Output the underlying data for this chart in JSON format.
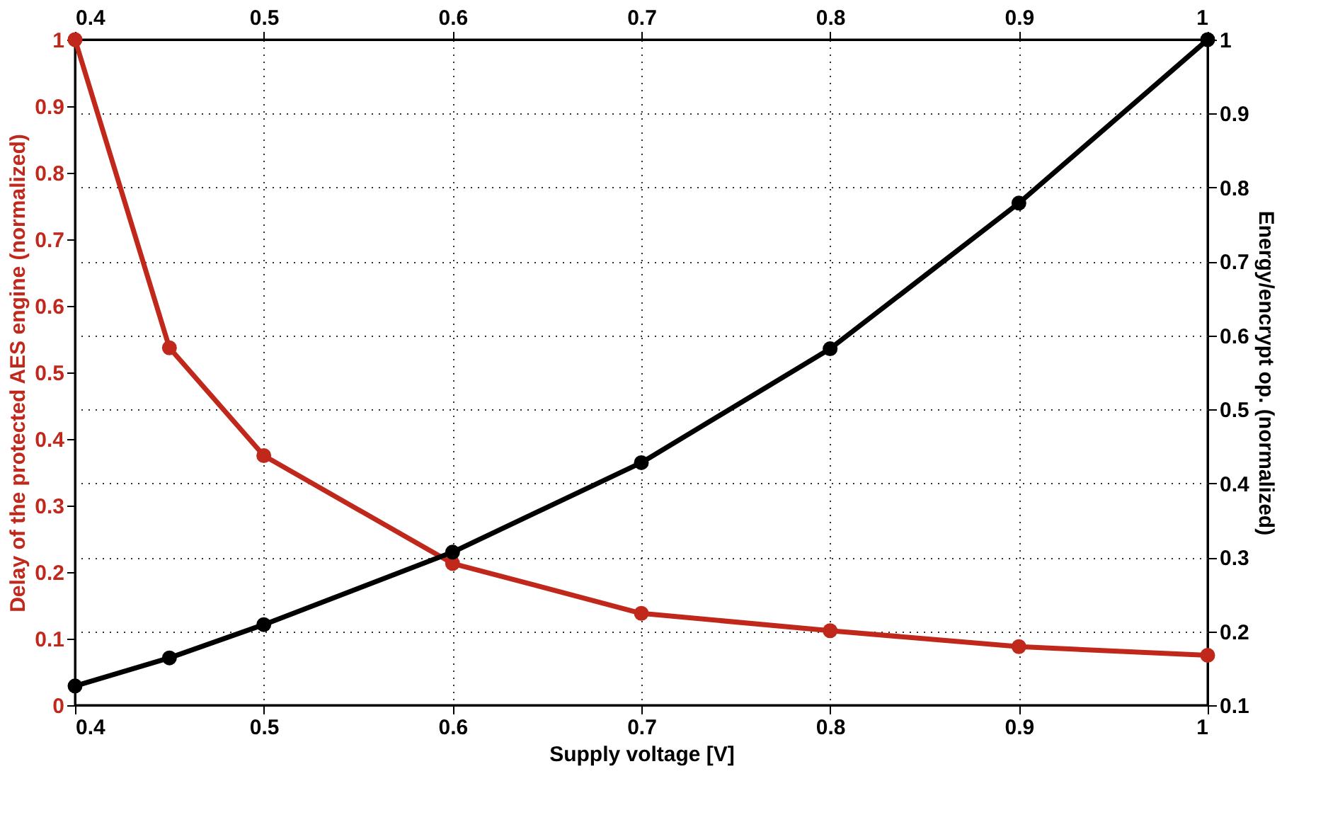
{
  "chart_data": {
    "type": "line",
    "xlabel": "Supply voltage [V]",
    "ylabel": "Delay of the protected AES engine (normalized)",
    "y2label": "Energy/encrypt op. (normalized)",
    "x": [
      0.4,
      0.45,
      0.5,
      0.6,
      0.7,
      0.8,
      0.9,
      1.0
    ],
    "series": [
      {
        "color": "#c0281c",
        "values": [
          1.0,
          0.537,
          0.375,
          0.213,
          0.138,
          0.112,
          0.088,
          0.075
        ]
      },
      {
        "color": "#000000",
        "axis": "y2",
        "values": [
          0.126,
          0.164,
          0.209,
          0.307,
          0.428,
          0.582,
          0.779,
          1.0
        ]
      }
    ],
    "xlim": [
      0.4,
      1
    ],
    "xticks": [
      0.4,
      0.5,
      0.6,
      0.7,
      0.8,
      0.9,
      1
    ],
    "x2lim": [
      0.4,
      1
    ],
    "x2ticks": [
      0.4,
      0.5,
      0.6,
      0.7,
      0.8,
      0.9,
      1
    ],
    "ylim": [
      0,
      1
    ],
    "yticks": [
      0,
      0.1,
      0.2,
      0.3,
      0.4,
      0.5,
      0.6,
      0.7,
      0.8,
      0.9,
      1
    ],
    "y2lim": [
      0.1,
      1
    ],
    "y2ticks": [
      0.1,
      0.2,
      0.3,
      0.4,
      0.5,
      0.6,
      0.7,
      0.8,
      0.9,
      1
    ],
    "grid": true,
    "marker": "circle",
    "line_style": "solid"
  }
}
